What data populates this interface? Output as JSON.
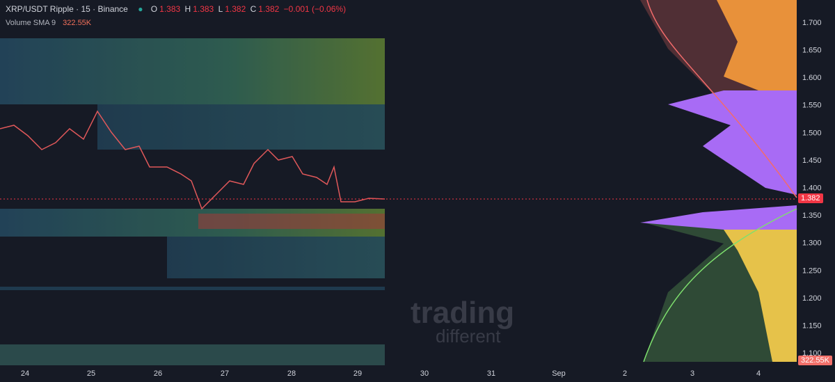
{
  "header": {
    "symbol": "XRP/USDT Ripple · 15 · Binance",
    "o_label": "O",
    "o": "1.383",
    "h_label": "H",
    "h": "1.383",
    "l_label": "L",
    "l": "1.382",
    "c_label": "C",
    "c": "1.382",
    "change": "−0.001 (−0.06%)"
  },
  "volume": {
    "label": "Volume SMA 9",
    "value": "322.55K"
  },
  "price_axis": [
    "1.700",
    "1.650",
    "1.600",
    "1.550",
    "1.500",
    "1.450",
    "1.400",
    "1.350",
    "1.300",
    "1.250",
    "1.200",
    "1.150",
    "1.100"
  ],
  "last_price": "1.382",
  "time_axis": [
    "24",
    "25",
    "26",
    "27",
    "28",
    "29",
    "30",
    "31",
    "Sep",
    "2",
    "3",
    "4"
  ],
  "watermark": {
    "line1": "trading",
    "line2": "different"
  }
}
